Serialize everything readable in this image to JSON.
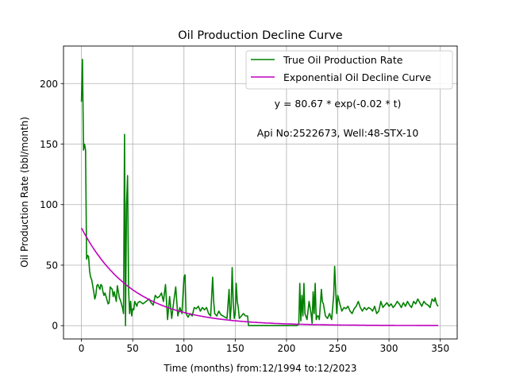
{
  "chart_data": {
    "type": "line",
    "title": "Oil Production Decline Curve",
    "xlabel": "Time (months) from:12/1994 to:12/2023",
    "ylabel": "Oil Production Rate (bbl/month)",
    "xlim": [
      -17.5,
      366.5
    ],
    "ylim": [
      -11,
      231
    ],
    "xticks": [
      0,
      50,
      100,
      150,
      200,
      250,
      300,
      350
    ],
    "yticks": [
      0,
      50,
      100,
      150,
      200
    ],
    "grid": true,
    "legend_position": "top-right",
    "annotations": [
      {
        "text": "y = 80.67 * exp(-0.02 * t)",
        "x": 250,
        "y": 183
      },
      {
        "text": "Api No:2522673, Well:48-STX-10",
        "x": 250,
        "y": 159
      }
    ],
    "series": [
      {
        "name": "True Oil Production Rate",
        "color": "#008000",
        "kind": "data",
        "points": [
          [
            0,
            185
          ],
          [
            1,
            220
          ],
          [
            2,
            145
          ],
          [
            3,
            150
          ],
          [
            4,
            145
          ],
          [
            5,
            55
          ],
          [
            6,
            58
          ],
          [
            7,
            57
          ],
          [
            8,
            45
          ],
          [
            9,
            40
          ],
          [
            10,
            38
          ],
          [
            11,
            33
          ],
          [
            12,
            28
          ],
          [
            13,
            22
          ],
          [
            14,
            25
          ],
          [
            15,
            33
          ],
          [
            16,
            34
          ],
          [
            17,
            32
          ],
          [
            18,
            30
          ],
          [
            19,
            34
          ],
          [
            20,
            33
          ],
          [
            21,
            28
          ],
          [
            22,
            25
          ],
          [
            23,
            27
          ],
          [
            24,
            24
          ],
          [
            25,
            21
          ],
          [
            26,
            18
          ],
          [
            27,
            19
          ],
          [
            28,
            32
          ],
          [
            29,
            31
          ],
          [
            30,
            30
          ],
          [
            31,
            24
          ],
          [
            32,
            28
          ],
          [
            33,
            24
          ],
          [
            34,
            20
          ],
          [
            35,
            33
          ],
          [
            36,
            28
          ],
          [
            37,
            23
          ],
          [
            38,
            21
          ],
          [
            39,
            18
          ],
          [
            40,
            15
          ],
          [
            41,
            10
          ],
          [
            42,
            158
          ],
          [
            43,
            0
          ],
          [
            44,
            100
          ],
          [
            45,
            124
          ],
          [
            46,
            30
          ],
          [
            47,
            10
          ],
          [
            48,
            20
          ],
          [
            49,
            8
          ],
          [
            50,
            14
          ],
          [
            51,
            13
          ],
          [
            52,
            20
          ],
          [
            53,
            18
          ],
          [
            54,
            16
          ],
          [
            55,
            19
          ],
          [
            57,
            20
          ],
          [
            60,
            18
          ],
          [
            63,
            20
          ],
          [
            66,
            22
          ],
          [
            68,
            19
          ],
          [
            70,
            17
          ],
          [
            72,
            25
          ],
          [
            74,
            23
          ],
          [
            76,
            24
          ],
          [
            78,
            27
          ],
          [
            80,
            20
          ],
          [
            82,
            34
          ],
          [
            84,
            5
          ],
          [
            86,
            24
          ],
          [
            88,
            6
          ],
          [
            90,
            20
          ],
          [
            92,
            32
          ],
          [
            94,
            8
          ],
          [
            96,
            15
          ],
          [
            98,
            10
          ],
          [
            100,
            40
          ],
          [
            101,
            42
          ],
          [
            102,
            10
          ],
          [
            104,
            7
          ],
          [
            106,
            10
          ],
          [
            108,
            8
          ],
          [
            110,
            15
          ],
          [
            112,
            14
          ],
          [
            114,
            16
          ],
          [
            116,
            12
          ],
          [
            118,
            15
          ],
          [
            120,
            13
          ],
          [
            122,
            15
          ],
          [
            124,
            10
          ],
          [
            126,
            8
          ],
          [
            128,
            40
          ],
          [
            129,
            20
          ],
          [
            130,
            10
          ],
          [
            132,
            8
          ],
          [
            134,
            12
          ],
          [
            136,
            9
          ],
          [
            138,
            8
          ],
          [
            140,
            7
          ],
          [
            142,
            6
          ],
          [
            144,
            30
          ],
          [
            145,
            5
          ],
          [
            146,
            15
          ],
          [
            147,
            48
          ],
          [
            148,
            20
          ],
          [
            149,
            6
          ],
          [
            150,
            10
          ],
          [
            151,
            35
          ],
          [
            152,
            20
          ],
          [
            153,
            15
          ],
          [
            154,
            6
          ],
          [
            156,
            8
          ],
          [
            158,
            10
          ],
          [
            160,
            8
          ],
          [
            162,
            8
          ],
          [
            163,
            0
          ],
          [
            170,
            0
          ],
          [
            180,
            0
          ],
          [
            190,
            0
          ],
          [
            200,
            0
          ],
          [
            210,
            0
          ],
          [
            212,
            1
          ],
          [
            213,
            35
          ],
          [
            214,
            4
          ],
          [
            215,
            25
          ],
          [
            216,
            8
          ],
          [
            217,
            35
          ],
          [
            218,
            10
          ],
          [
            220,
            5
          ],
          [
            222,
            20
          ],
          [
            224,
            10
          ],
          [
            225,
            2
          ],
          [
            226,
            28
          ],
          [
            227,
            10
          ],
          [
            228,
            35
          ],
          [
            229,
            5
          ],
          [
            230,
            8
          ],
          [
            231,
            8
          ],
          [
            232,
            5
          ],
          [
            234,
            30
          ],
          [
            235,
            20
          ],
          [
            236,
            18
          ],
          [
            238,
            8
          ],
          [
            240,
            6
          ],
          [
            242,
            10
          ],
          [
            244,
            5
          ],
          [
            245,
            15
          ],
          [
            246,
            25
          ],
          [
            247,
            49
          ],
          [
            248,
            30
          ],
          [
            249,
            10
          ],
          [
            250,
            25
          ],
          [
            252,
            18
          ],
          [
            254,
            12
          ],
          [
            256,
            15
          ],
          [
            258,
            14
          ],
          [
            260,
            16
          ],
          [
            262,
            12
          ],
          [
            264,
            10
          ],
          [
            266,
            14
          ],
          [
            268,
            16
          ],
          [
            270,
            20
          ],
          [
            272,
            15
          ],
          [
            274,
            12
          ],
          [
            276,
            15
          ],
          [
            278,
            13
          ],
          [
            280,
            15
          ],
          [
            282,
            14
          ],
          [
            284,
            12
          ],
          [
            286,
            16
          ],
          [
            288,
            10
          ],
          [
            290,
            12
          ],
          [
            292,
            20
          ],
          [
            294,
            15
          ],
          [
            296,
            17
          ],
          [
            298,
            19
          ],
          [
            300,
            16
          ],
          [
            302,
            18
          ],
          [
            304,
            15
          ],
          [
            306,
            17
          ],
          [
            308,
            20
          ],
          [
            310,
            18
          ],
          [
            312,
            15
          ],
          [
            314,
            19
          ],
          [
            316,
            16
          ],
          [
            318,
            20
          ],
          [
            320,
            17
          ],
          [
            322,
            15
          ],
          [
            324,
            20
          ],
          [
            326,
            18
          ],
          [
            328,
            22
          ],
          [
            330,
            19
          ],
          [
            332,
            16
          ],
          [
            334,
            20
          ],
          [
            336,
            18
          ],
          [
            338,
            17
          ],
          [
            340,
            15
          ],
          [
            342,
            22
          ],
          [
            344,
            20
          ],
          [
            345,
            23
          ],
          [
            346,
            19
          ],
          [
            347,
            17
          ],
          [
            348,
            16
          ]
        ]
      },
      {
        "name": "Exponential Oil Decline Curve",
        "color": "#bf00bf",
        "kind": "fit",
        "a": 80.67,
        "b": 0.02,
        "t_range": [
          0,
          348
        ]
      }
    ]
  }
}
